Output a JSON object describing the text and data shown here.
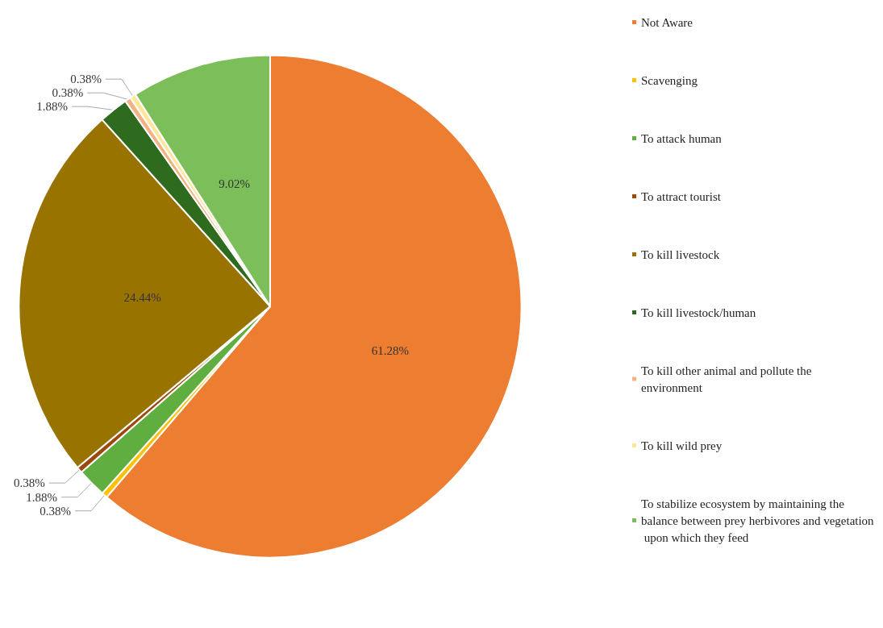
{
  "chart_data": {
    "type": "pie",
    "categories": [
      "Not Aware",
      "Scavenging",
      "To attack human",
      "To attract tourist",
      "To kill livestock",
      "To kill livestock/human",
      "To kill other animal and pollute the environment",
      "To kill wild prey",
      "To stabilize ecosystem by maintaining the balance between prey herbivores and vegetation upon which they feed"
    ],
    "values": [
      61.28,
      0.38,
      1.88,
      0.38,
      24.44,
      1.88,
      0.38,
      0.38,
      9.02
    ],
    "colors": [
      "#ed7d31",
      "#ffc000",
      "#5fae3f",
      "#9e480e",
      "#997300",
      "#2e6b1f",
      "#f4b183",
      "#ffe699",
      "#7cbf5a"
    ],
    "value_labels": [
      "61.28%",
      "0.38%",
      "1.88%",
      "0.38%",
      "24.44%",
      "1.88%",
      "0.38%",
      "0.38%",
      "9.02%"
    ],
    "legend": "right"
  }
}
